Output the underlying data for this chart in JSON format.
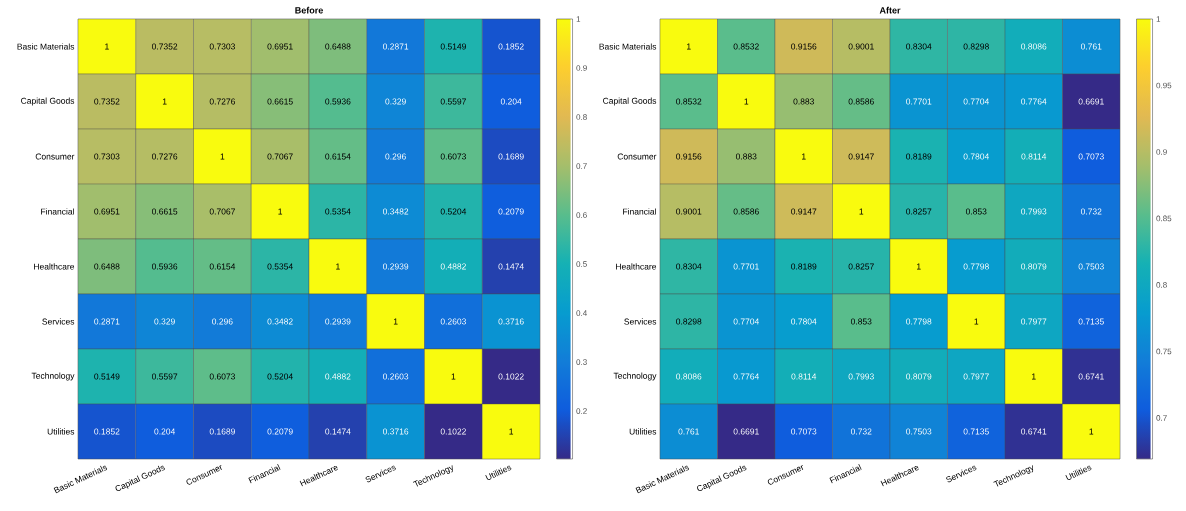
{
  "chart_data": [
    {
      "type": "heatmap",
      "title": "Before",
      "categories": [
        "Basic Materials",
        "Capital Goods",
        "Consumer",
        "Financial",
        "Healthcare",
        "Services",
        "Technology",
        "Utilities"
      ],
      "y_categories": [
        "Basic Materials",
        "Capital Goods",
        "Consumer",
        "Financial",
        "Healthcare",
        "Services",
        "Technology",
        "Utilities"
      ],
      "cells": [
        [
          1,
          0.7352,
          0.7303,
          0.6951,
          0.6488,
          0.2871,
          0.5149,
          0.1852
        ],
        [
          0.7352,
          1,
          0.7276,
          0.6615,
          0.5936,
          0.329,
          0.5597,
          0.204
        ],
        [
          0.7303,
          0.7276,
          1,
          0.7067,
          0.6154,
          0.296,
          0.6073,
          0.1689
        ],
        [
          0.6951,
          0.6615,
          0.7067,
          1,
          0.5354,
          0.3482,
          0.5204,
          0.2079
        ],
        [
          0.6488,
          0.5936,
          0.6154,
          0.5354,
          1,
          0.2939,
          0.4882,
          0.1474
        ],
        [
          0.2871,
          0.329,
          0.296,
          0.3482,
          0.2939,
          1,
          0.2603,
          0.3716
        ],
        [
          0.5149,
          0.5597,
          0.6073,
          0.5204,
          0.4882,
          0.2603,
          1,
          0.1022
        ],
        [
          0.1852,
          0.204,
          0.1689,
          0.2079,
          0.1474,
          0.3716,
          0.1022,
          1
        ]
      ],
      "clim": [
        0.1022,
        1
      ],
      "cticks": [
        0.2,
        0.3,
        0.4,
        0.5,
        0.6,
        0.7,
        0.8,
        0.9,
        1
      ],
      "data_labels": true
    },
    {
      "type": "heatmap",
      "title": "After",
      "categories": [
        "Basic Materials",
        "Capital Goods",
        "Consumer",
        "Financial",
        "Healthcare",
        "Services",
        "Technology",
        "Utilities"
      ],
      "y_categories": [
        "Basic Materials",
        "Capital Goods",
        "Consumer",
        "Financial",
        "Healthcare",
        "Services",
        "Technology",
        "Utilities"
      ],
      "cells": [
        [
          1,
          0.8532,
          0.9156,
          0.9001,
          0.8304,
          0.8298,
          0.8086,
          0.761
        ],
        [
          0.8532,
          1,
          0.883,
          0.8586,
          0.7701,
          0.7704,
          0.7764,
          0.6691
        ],
        [
          0.9156,
          0.883,
          1,
          0.9147,
          0.8189,
          0.7804,
          0.8114,
          0.7073
        ],
        [
          0.9001,
          0.8586,
          0.9147,
          1,
          0.8257,
          0.853,
          0.7993,
          0.732
        ],
        [
          0.8304,
          0.7701,
          0.8189,
          0.8257,
          1,
          0.7798,
          0.8079,
          0.7503
        ],
        [
          0.8298,
          0.7704,
          0.7804,
          0.853,
          0.7798,
          1,
          0.7977,
          0.7135
        ],
        [
          0.8086,
          0.7764,
          0.8114,
          0.7993,
          0.8079,
          0.7977,
          1,
          0.6741
        ],
        [
          0.761,
          0.6691,
          0.7073,
          0.732,
          0.7503,
          0.7135,
          0.6741,
          1
        ]
      ],
      "clim": [
        0.6691,
        1
      ],
      "cticks": [
        0.7,
        0.75,
        0.8,
        0.85,
        0.9,
        0.95,
        1
      ],
      "data_labels": true
    }
  ]
}
